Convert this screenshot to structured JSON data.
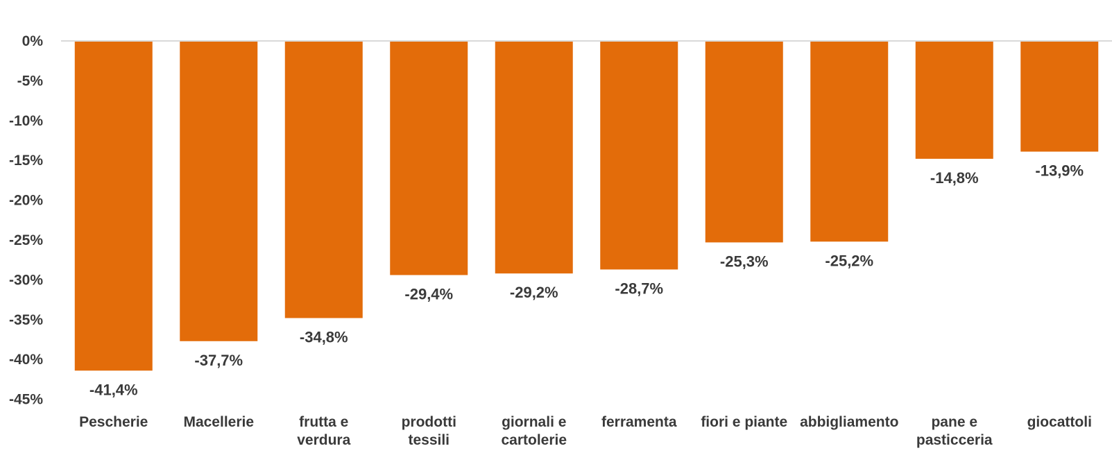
{
  "chart_data": {
    "type": "bar",
    "title": "",
    "xlabel": "",
    "ylabel": "",
    "ylim": [
      -45,
      0
    ],
    "yticks": [
      0,
      -5,
      -10,
      -15,
      -20,
      -25,
      -30,
      -35,
      -40,
      -45
    ],
    "ytick_labels": [
      "0%",
      "-5%",
      "-10%",
      "-15%",
      "-20%",
      "-25%",
      "-30%",
      "-35%",
      "-40%",
      "-45%"
    ],
    "categories": [
      [
        "Pescherie"
      ],
      [
        "Macellerie"
      ],
      [
        "frutta e",
        "verdura"
      ],
      [
        "prodotti",
        "tessili"
      ],
      [
        "giornali e",
        "cartolerie"
      ],
      [
        "ferramenta"
      ],
      [
        "fiori e piante"
      ],
      [
        "abbigliamento"
      ],
      [
        "pane e",
        "pasticceria"
      ],
      [
        "giocattoli"
      ]
    ],
    "values": [
      -41.4,
      -37.7,
      -34.8,
      -29.4,
      -29.2,
      -28.7,
      -25.3,
      -25.2,
      -14.8,
      -13.9
    ],
    "data_labels": [
      "-41,4%",
      "-37,7%",
      "-34,8%",
      "-29,4%",
      "-29,2%",
      "-28,7%",
      "-25,3%",
      "-25,2%",
      "-14,8%",
      "-13,9%"
    ],
    "grid": false,
    "legend": "none",
    "colors": {
      "bar": "#E36C0A",
      "baseline": "#D9D9D9",
      "text": "#3A3A3A"
    }
  }
}
